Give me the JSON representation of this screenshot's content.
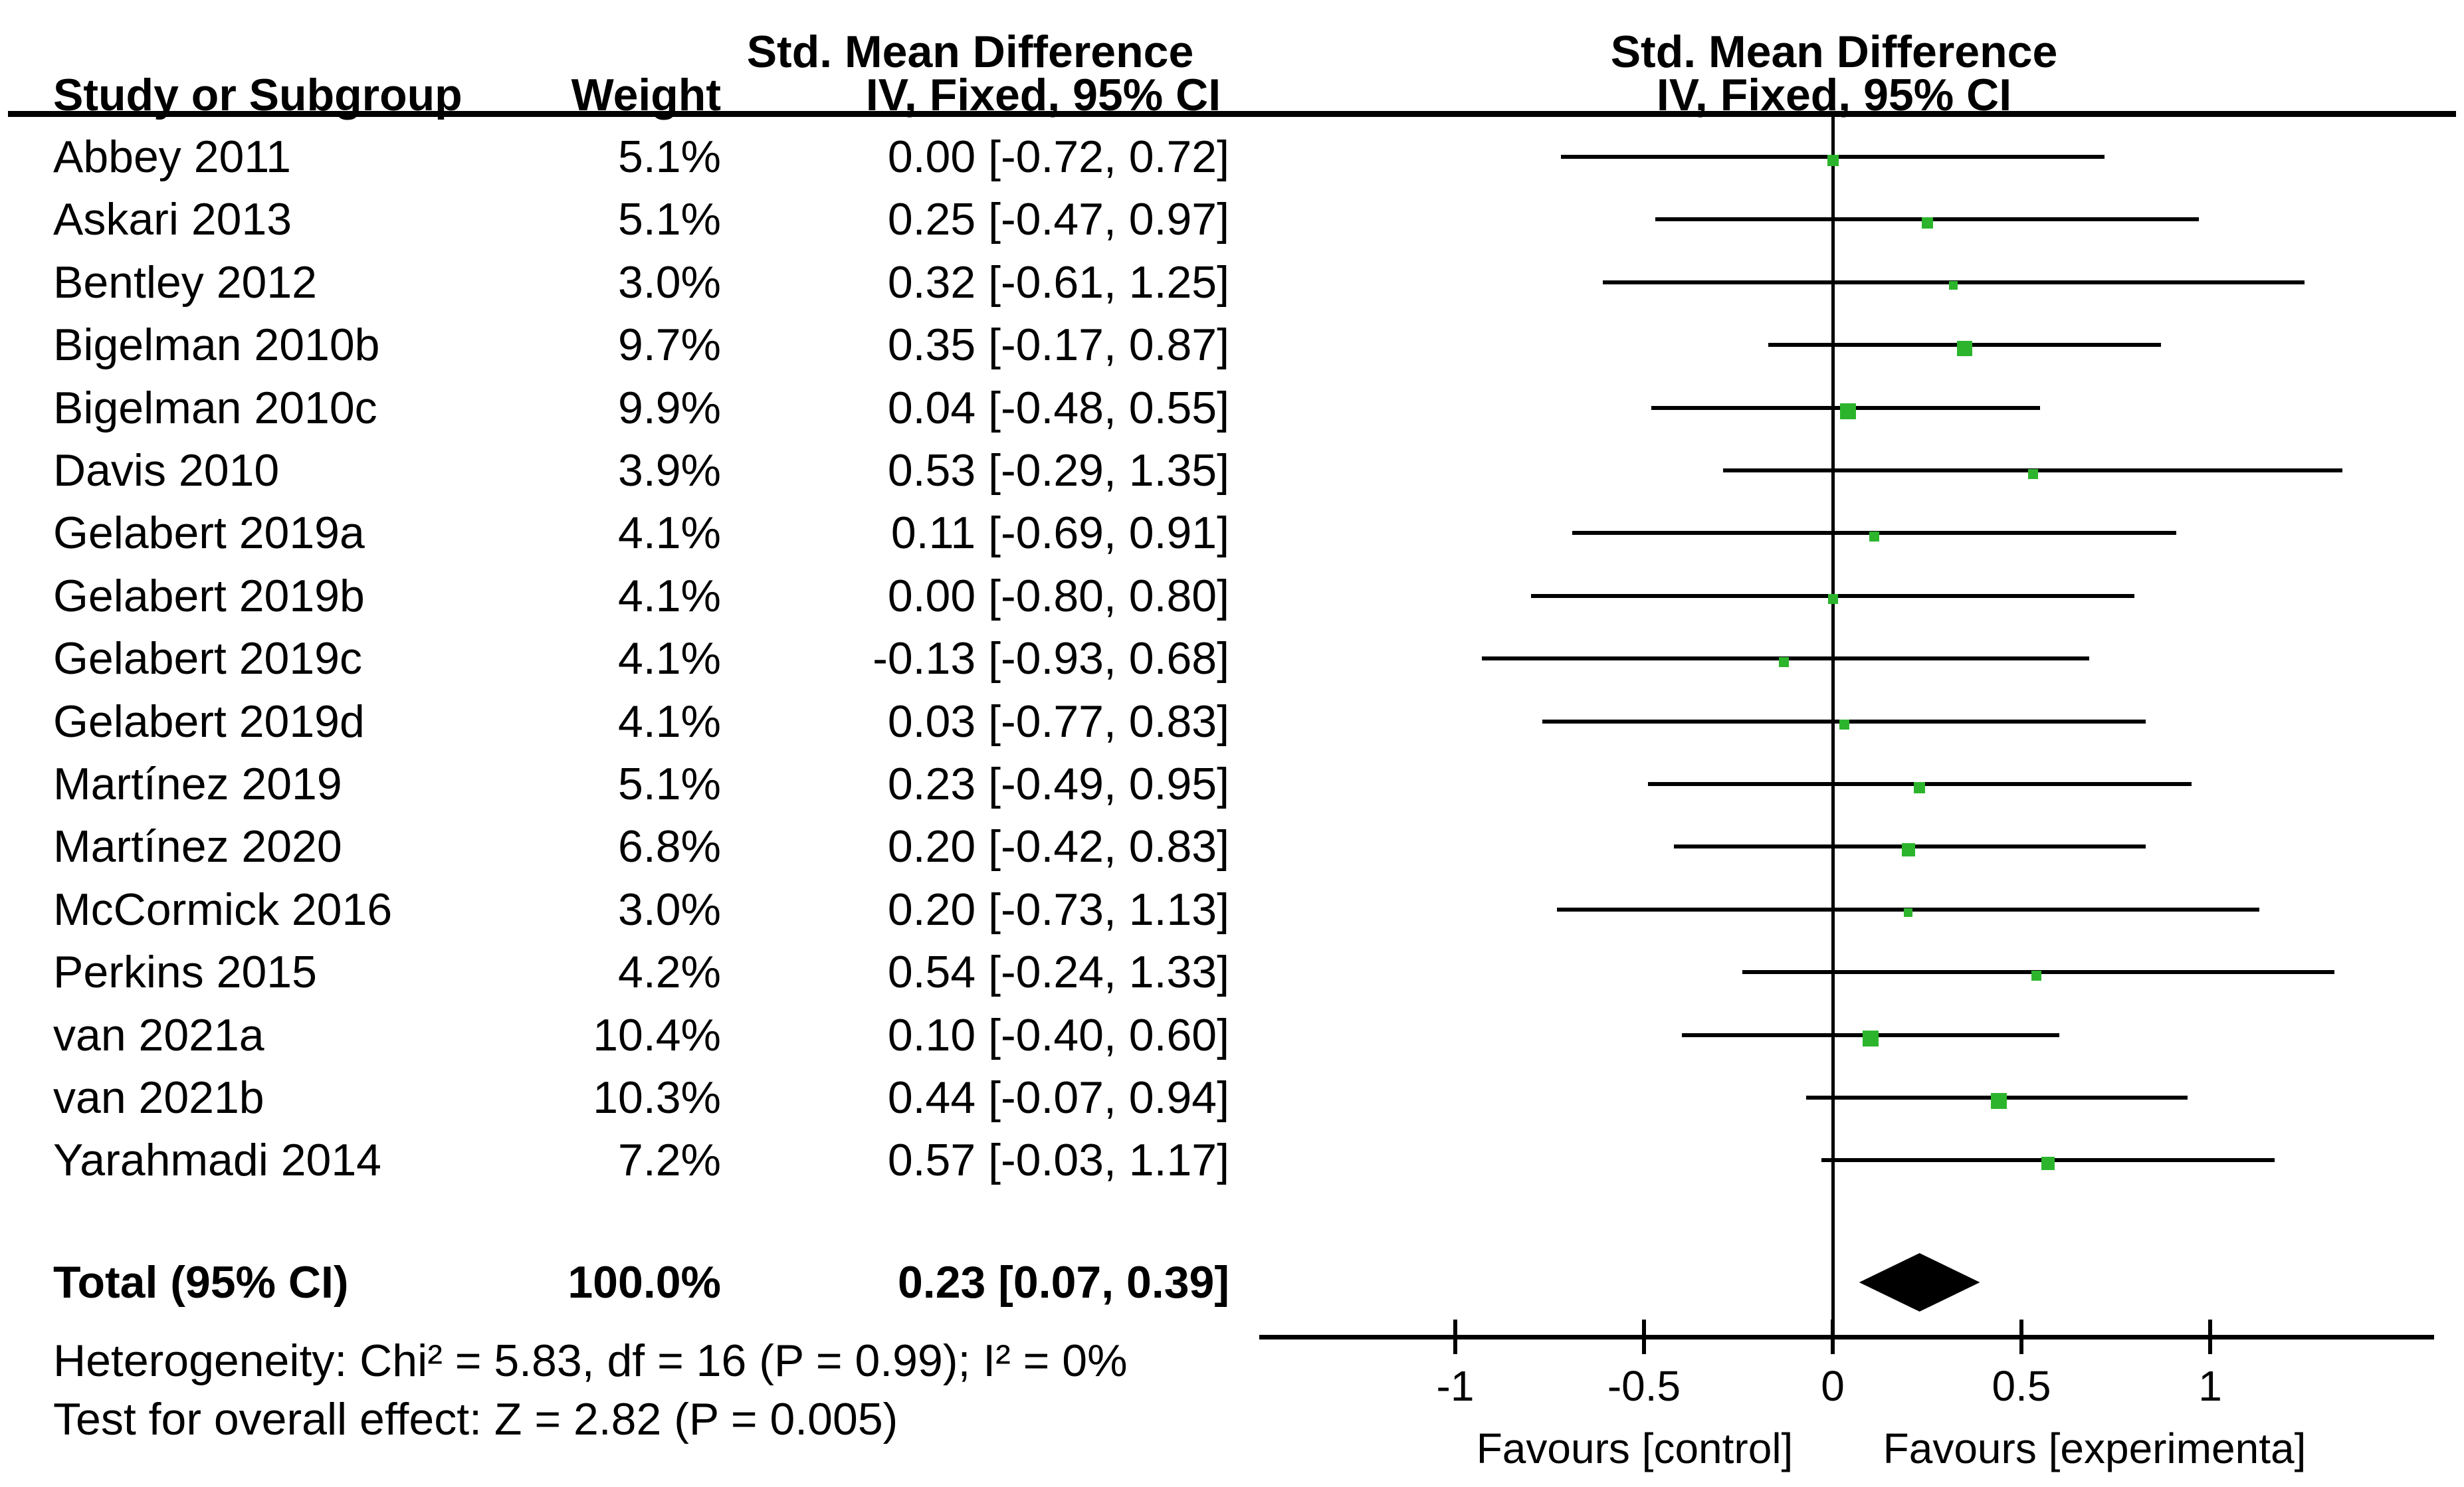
{
  "table_header": {
    "study": "Study or Subgroup",
    "weight": "Weight",
    "effect_line1": "Std. Mean Difference",
    "effect_line2": "IV, Fixed, 95% CI"
  },
  "plot_header": {
    "line1": "Std. Mean Difference",
    "line2": "IV, Fixed, 95% CI"
  },
  "chart_data": {
    "type": "forest",
    "effect_measure": "Std. Mean Difference",
    "method": "IV, Fixed, 95% CI",
    "studies": [
      {
        "name": "Abbey 2011",
        "weight_pct": 5.1,
        "weight_label": "5.1%",
        "smd": 0.0,
        "ci_low": -0.72,
        "ci_high": 0.72,
        "ci_label": "0.00 [-0.72, 0.72]"
      },
      {
        "name": "Askari 2013",
        "weight_pct": 5.1,
        "weight_label": "5.1%",
        "smd": 0.25,
        "ci_low": -0.47,
        "ci_high": 0.97,
        "ci_label": "0.25 [-0.47, 0.97]"
      },
      {
        "name": "Bentley 2012",
        "weight_pct": 3.0,
        "weight_label": "3.0%",
        "smd": 0.32,
        "ci_low": -0.61,
        "ci_high": 1.25,
        "ci_label": "0.32 [-0.61, 1.25]"
      },
      {
        "name": "Bigelman 2010b",
        "weight_pct": 9.7,
        "weight_label": "9.7%",
        "smd": 0.35,
        "ci_low": -0.17,
        "ci_high": 0.87,
        "ci_label": "0.35 [-0.17, 0.87]"
      },
      {
        "name": "Bigelman 2010c",
        "weight_pct": 9.9,
        "weight_label": "9.9%",
        "smd": 0.04,
        "ci_low": -0.48,
        "ci_high": 0.55,
        "ci_label": "0.04 [-0.48, 0.55]"
      },
      {
        "name": "Davis 2010",
        "weight_pct": 3.9,
        "weight_label": "3.9%",
        "smd": 0.53,
        "ci_low": -0.29,
        "ci_high": 1.35,
        "ci_label": "0.53 [-0.29, 1.35]"
      },
      {
        "name": "Gelabert 2019a",
        "weight_pct": 4.1,
        "weight_label": "4.1%",
        "smd": 0.11,
        "ci_low": -0.69,
        "ci_high": 0.91,
        "ci_label": "0.11 [-0.69, 0.91]"
      },
      {
        "name": "Gelabert 2019b",
        "weight_pct": 4.1,
        "weight_label": "4.1%",
        "smd": 0.0,
        "ci_low": -0.8,
        "ci_high": 0.8,
        "ci_label": "0.00 [-0.80, 0.80]"
      },
      {
        "name": "Gelabert 2019c",
        "weight_pct": 4.1,
        "weight_label": "4.1%",
        "smd": -0.13,
        "ci_low": -0.93,
        "ci_high": 0.68,
        "ci_label": "-0.13 [-0.93, 0.68]"
      },
      {
        "name": "Gelabert 2019d",
        "weight_pct": 4.1,
        "weight_label": "4.1%",
        "smd": 0.03,
        "ci_low": -0.77,
        "ci_high": 0.83,
        "ci_label": "0.03 [-0.77, 0.83]"
      },
      {
        "name": "Martínez 2019",
        "weight_pct": 5.1,
        "weight_label": "5.1%",
        "smd": 0.23,
        "ci_low": -0.49,
        "ci_high": 0.95,
        "ci_label": "0.23 [-0.49, 0.95]"
      },
      {
        "name": "Martínez 2020",
        "weight_pct": 6.8,
        "weight_label": "6.8%",
        "smd": 0.2,
        "ci_low": -0.42,
        "ci_high": 0.83,
        "ci_label": "0.20 [-0.42, 0.83]"
      },
      {
        "name": "McCormick 2016",
        "weight_pct": 3.0,
        "weight_label": "3.0%",
        "smd": 0.2,
        "ci_low": -0.73,
        "ci_high": 1.13,
        "ci_label": "0.20 [-0.73, 1.13]"
      },
      {
        "name": "Perkins 2015",
        "weight_pct": 4.2,
        "weight_label": "4.2%",
        "smd": 0.54,
        "ci_low": -0.24,
        "ci_high": 1.33,
        "ci_label": "0.54 [-0.24, 1.33]"
      },
      {
        "name": "van 2021a",
        "weight_pct": 10.4,
        "weight_label": "10.4%",
        "smd": 0.1,
        "ci_low": -0.4,
        "ci_high": 0.6,
        "ci_label": "0.10 [-0.40, 0.60]"
      },
      {
        "name": "van 2021b",
        "weight_pct": 10.3,
        "weight_label": "10.3%",
        "smd": 0.44,
        "ci_low": -0.07,
        "ci_high": 0.94,
        "ci_label": "0.44 [-0.07, 0.94]"
      },
      {
        "name": "Yarahmadi 2014",
        "weight_pct": 7.2,
        "weight_label": "7.2%",
        "smd": 0.57,
        "ci_low": -0.03,
        "ci_high": 1.17,
        "ci_label": "0.57 [-0.03, 1.17]"
      }
    ],
    "total": {
      "label": "Total (95% CI)",
      "weight_label": "100.0%",
      "smd": 0.23,
      "ci_low": 0.07,
      "ci_high": 0.39,
      "ci_label": "0.23 [0.07, 0.39]"
    },
    "heterogeneity": "Heterogeneity: Chi² = 5.83, df = 16 (P = 0.99); I² = 0%",
    "overall_effect": "Test for overall effect: Z = 2.82 (P = 0.005)",
    "axis": {
      "ticks": [
        -1,
        -0.5,
        0,
        0.5,
        1
      ],
      "tick_labels": [
        "-1",
        "-0.5",
        "0",
        "0.5",
        "1"
      ],
      "grid": false
    },
    "favours_left": "Favours [control]",
    "favours_right": "Favours [experimenta]",
    "marker_color": "#2cb52c",
    "line_color": "#000000"
  }
}
